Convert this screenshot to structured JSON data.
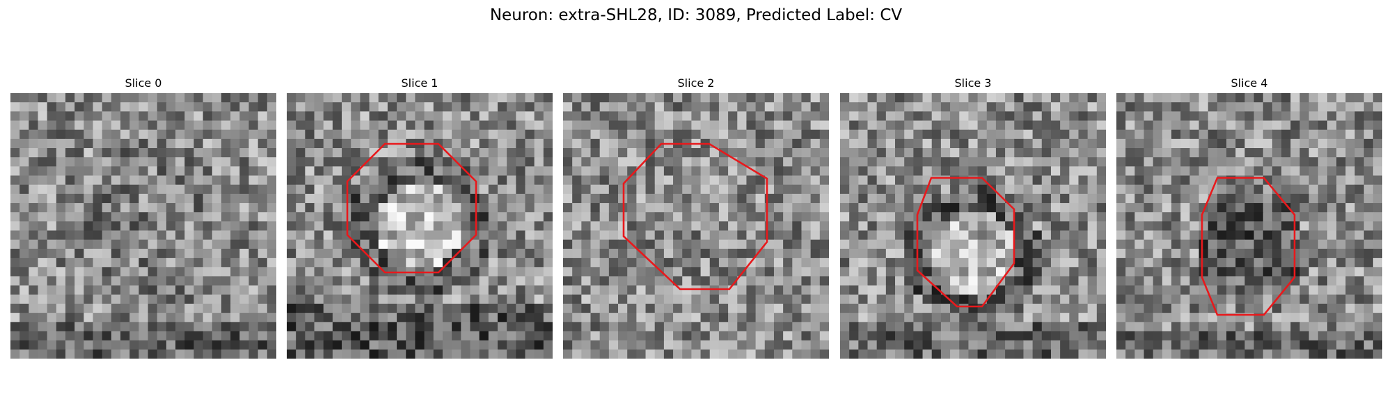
{
  "figure": {
    "title": "Neuron: extra-SHL28, ID: 3089, Predicted Label: CV"
  },
  "panels": [
    {
      "title": "Slice 0",
      "has_contour": false,
      "seed": 11,
      "pattern": "diffuse"
    },
    {
      "title": "Slice 1",
      "has_contour": true,
      "seed": 23,
      "pattern": "bright-center"
    },
    {
      "title": "Slice 2",
      "has_contour": true,
      "seed": 37,
      "pattern": "noisy"
    },
    {
      "title": "Slice 3",
      "has_contour": true,
      "seed": 41,
      "pattern": "bright-center-small"
    },
    {
      "title": "Slice 4",
      "has_contour": true,
      "seed": 59,
      "pattern": "dark-center"
    }
  ],
  "colors": {
    "contour": "#e8191c",
    "background": "#ffffff"
  },
  "image": {
    "grid_cells": 29,
    "colormap": "gray"
  }
}
